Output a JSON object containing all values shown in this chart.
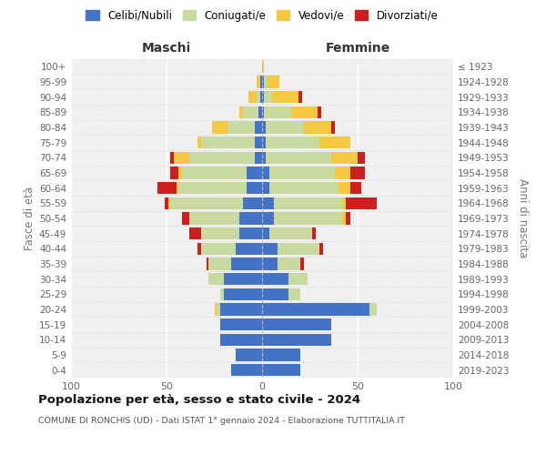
{
  "age_groups": [
    "0-4",
    "5-9",
    "10-14",
    "15-19",
    "20-24",
    "25-29",
    "30-34",
    "35-39",
    "40-44",
    "45-49",
    "50-54",
    "55-59",
    "60-64",
    "65-69",
    "70-74",
    "75-79",
    "80-84",
    "85-89",
    "90-94",
    "95-99",
    "100+"
  ],
  "birth_years": [
    "2019-2023",
    "2014-2018",
    "2009-2013",
    "2004-2008",
    "1999-2003",
    "1994-1998",
    "1989-1993",
    "1984-1988",
    "1979-1983",
    "1974-1978",
    "1969-1973",
    "1964-1968",
    "1959-1963",
    "1954-1958",
    "1949-1953",
    "1944-1948",
    "1939-1943",
    "1934-1938",
    "1929-1933",
    "1924-1928",
    "≤ 1923"
  ],
  "colors": {
    "celibi": "#4472c4",
    "coniugati": "#c8daa0",
    "vedovi": "#f5c842",
    "divorziati": "#cc2020"
  },
  "maschi": {
    "celibi": [
      16,
      14,
      22,
      22,
      22,
      20,
      20,
      16,
      14,
      12,
      12,
      10,
      8,
      8,
      4,
      4,
      4,
      2,
      1,
      1,
      0
    ],
    "coniugati": [
      0,
      0,
      0,
      0,
      2,
      2,
      8,
      12,
      18,
      20,
      26,
      38,
      36,
      34,
      34,
      28,
      14,
      8,
      2,
      0,
      0
    ],
    "vedovi": [
      0,
      0,
      0,
      0,
      1,
      0,
      0,
      0,
      0,
      0,
      0,
      1,
      1,
      2,
      8,
      2,
      8,
      2,
      4,
      2,
      0
    ],
    "divorziati": [
      0,
      0,
      0,
      0,
      0,
      0,
      0,
      1,
      2,
      6,
      4,
      2,
      10,
      4,
      2,
      0,
      0,
      0,
      0,
      0,
      0
    ]
  },
  "femmine": {
    "celibi": [
      20,
      20,
      36,
      36,
      56,
      14,
      14,
      8,
      8,
      4,
      6,
      6,
      4,
      4,
      2,
      2,
      2,
      1,
      1,
      1,
      0
    ],
    "coniugati": [
      0,
      0,
      0,
      0,
      4,
      6,
      10,
      12,
      22,
      22,
      36,
      36,
      36,
      34,
      34,
      28,
      20,
      14,
      4,
      2,
      0
    ],
    "vedovi": [
      0,
      0,
      0,
      0,
      0,
      0,
      0,
      0,
      0,
      0,
      2,
      2,
      6,
      8,
      14,
      16,
      14,
      14,
      14,
      6,
      1
    ],
    "divorziati": [
      0,
      0,
      0,
      0,
      0,
      0,
      0,
      2,
      2,
      2,
      2,
      16,
      6,
      8,
      4,
      0,
      2,
      2,
      2,
      0,
      0
    ]
  },
  "title": "Popolazione per età, sesso e stato civile - 2024",
  "subtitle": "COMUNE DI RONCHIS (UD) - Dati ISTAT 1° gennaio 2024 - Elaborazione TUTTITALIA.IT",
  "header_left": "Maschi",
  "header_right": "Femmine",
  "ylabel_left": "Fasce di età",
  "ylabel_right": "Anni di nascita",
  "xlim": 100,
  "legend_labels": [
    "Celibi/Nubili",
    "Coniugati/e",
    "Vedovi/e",
    "Divorziati/e"
  ],
  "background_color": "#ffffff",
  "plot_bg_color": "#f0f0f0"
}
